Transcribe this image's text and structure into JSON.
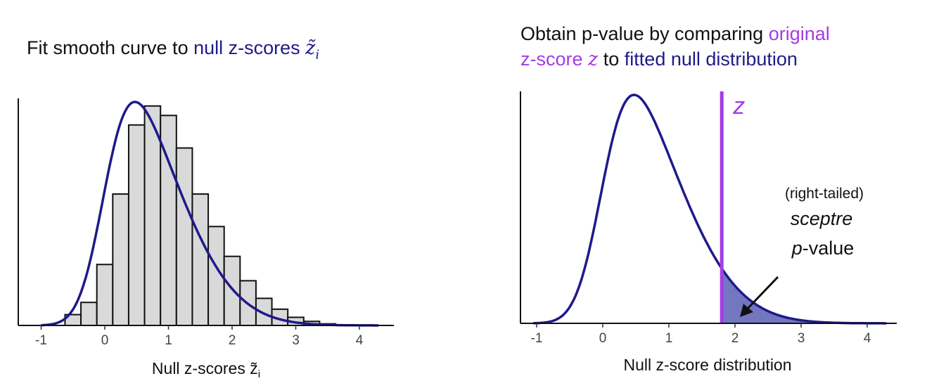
{
  "left_panel": {
    "title_part1": "Fit smooth curve to ",
    "title_part2": "null z-scores ",
    "title_symbol": "z̃",
    "title_subscript": "i"
  },
  "right_panel": {
    "title_line1_part1": "Obtain p-value by comparing ",
    "title_line1_part2": "original",
    "title_line2_part1": "z-score ",
    "title_line2_symbol": "z",
    "title_line2_part2": " to ",
    "title_line2_part3": "fitted null distribution",
    "z_marker_label": "z",
    "annotation_line1": "(right-tailed)",
    "annotation_line2": "sceptre",
    "annotation_line3_italic": "p",
    "annotation_line3_rest": "-value"
  },
  "colors": {
    "navy": "#1f1a8a",
    "purple": "#a43ce6",
    "bar_fill": "#d9d9d9",
    "tail_fill": "#7377c0"
  },
  "chart_data": [
    {
      "type": "bar",
      "xlabel": "Null z-scores z̃i",
      "xlabel_text": "Null z-scores ",
      "xlabel_symbol": "z̃",
      "xlabel_subscript": "i",
      "ylabel": "",
      "xlim": [
        -1.1,
        4.3
      ],
      "xticks": [
        -1,
        0,
        1,
        2,
        3,
        4
      ],
      "xtick_labels": [
        "-1",
        "0",
        "1",
        "2",
        "3",
        "4"
      ],
      "bin_width": 0.25,
      "bin_start": -0.625,
      "counts": [
        0.08,
        0.17,
        0.45,
        0.97,
        1.48,
        1.62,
        1.55,
        1.31,
        0.97,
        0.73,
        0.51,
        0.33,
        0.2,
        0.12,
        0.06,
        0.03,
        0.012
      ],
      "ylim": [
        0,
        1.65
      ],
      "curve": {
        "type": "skew-normal",
        "location": 0.0,
        "scale": 1.0,
        "shape": 3.0
      },
      "grid": false,
      "legend": "none"
    },
    {
      "type": "area",
      "xlabel": "Null z-score distribution",
      "ylabel": "",
      "xlim": [
        -1.1,
        4.3
      ],
      "xticks": [
        -1,
        0,
        1,
        2,
        3,
        4
      ],
      "xtick_labels": [
        "-1",
        "0",
        "1",
        "2",
        "3",
        "4"
      ],
      "curve": {
        "type": "skew-normal",
        "location": 0.0,
        "scale": 1.0,
        "shape": 3.0
      },
      "observed_z": 1.8,
      "shaded_region": "x > z (right tail)",
      "grid": false,
      "legend": "none"
    }
  ]
}
